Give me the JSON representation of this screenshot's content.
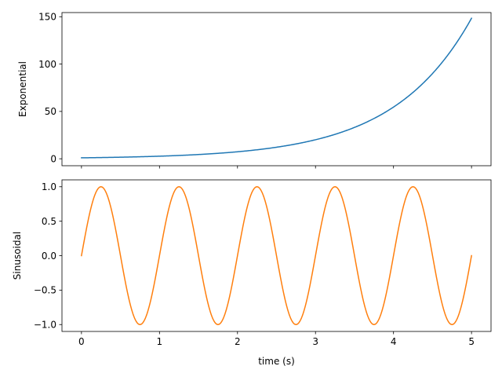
{
  "chart_data": [
    {
      "type": "line",
      "title": "",
      "xlabel": "",
      "ylabel": "Exponential",
      "xlim": [
        -0.25,
        5.25
      ],
      "ylim": [
        -7.35,
        154.4
      ],
      "xticks": [
        0,
        1,
        2,
        3,
        4,
        5
      ],
      "xtick_labels_visible": false,
      "yticks": [
        0,
        50,
        100,
        150
      ],
      "ytick_labels": [
        "0",
        "50",
        "100",
        "150"
      ],
      "grid": false,
      "series": [
        {
          "color": "#1f77b4",
          "function": "exp(t)",
          "x": [
            0,
            0.5,
            1,
            1.5,
            2,
            2.5,
            3,
            3.5,
            4,
            4.5,
            5
          ],
          "y": [
            1,
            1.65,
            2.72,
            4.48,
            7.39,
            12.18,
            20.09,
            33.12,
            54.6,
            90.02,
            148.41
          ]
        }
      ]
    },
    {
      "type": "line",
      "title": "",
      "xlabel": "time (s)",
      "ylabel": "Sinusoidal",
      "xlim": [
        -0.25,
        5.25
      ],
      "ylim": [
        -1.1,
        1.1
      ],
      "xticks": [
        0,
        1,
        2,
        3,
        4,
        5
      ],
      "xtick_labels": [
        "0",
        "1",
        "2",
        "3",
        "4",
        "5"
      ],
      "yticks": [
        -1.0,
        -0.5,
        0.0,
        0.5,
        1.0
      ],
      "ytick_labels": [
        "−1.0",
        "−0.5",
        "0.0",
        "0.5",
        "1.0"
      ],
      "grid": false,
      "series": [
        {
          "color": "#ff7f0e",
          "function": "sin(2*pi*t)",
          "x": [
            0,
            0.25,
            0.5,
            0.75,
            1,
            1.25,
            1.5,
            1.75,
            2,
            2.25,
            2.5,
            2.75,
            3,
            3.25,
            3.5,
            3.75,
            4,
            4.25,
            4.5,
            4.75,
            5
          ],
          "y": [
            0,
            1,
            0,
            -1,
            0,
            1,
            0,
            -1,
            0,
            1,
            0,
            -1,
            0,
            1,
            0,
            -1,
            0,
            1,
            0,
            -1,
            0
          ]
        }
      ]
    }
  ]
}
